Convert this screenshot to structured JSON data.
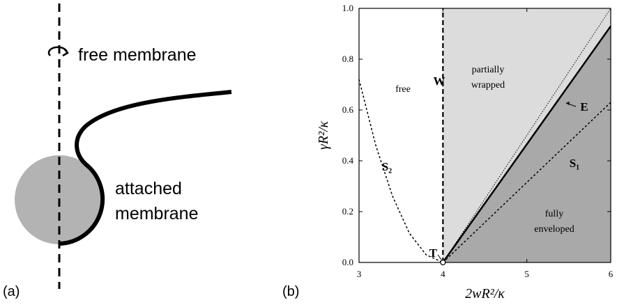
{
  "diagram": {
    "panel_label": "(a)",
    "free_label": "free membrane",
    "attached_label": [
      "attached",
      "membrane"
    ]
  },
  "chart_data": {
    "type": "line",
    "panel_label": "(b)",
    "x_label": "2wR²/κ",
    "y_label": "γR²/κ",
    "xlim": [
      3,
      6
    ],
    "ylim": [
      0,
      1
    ],
    "xticks": [
      3,
      4,
      5,
      6
    ],
    "yticks": [
      {
        "value": 0,
        "label": "0.0"
      },
      0.2,
      0.4,
      0.6,
      0.8,
      {
        "value": 1,
        "label": "1.0"
      }
    ],
    "series": [
      {
        "name": "W",
        "style": "dashed",
        "color": "#000000",
        "x": [
          4,
          4
        ],
        "y": [
          0,
          1
        ]
      },
      {
        "name": "E",
        "style": "solid",
        "color": "#000000",
        "x": [
          4,
          6
        ],
        "y": [
          0,
          0.93
        ]
      },
      {
        "style": "dotted",
        "color": "#000000",
        "x": [
          4,
          6
        ],
        "y": [
          0,
          1.0
        ]
      },
      {
        "name": "S₁",
        "style": "dashed-fine",
        "color": "#000000",
        "x": [
          4,
          6
        ],
        "y": [
          0,
          0.63
        ]
      },
      {
        "name": "S₂",
        "style": "dashed-fine",
        "color": "#000000",
        "x": [
          3,
          3.2,
          3.4,
          3.6,
          3.8,
          4
        ],
        "y": [
          0.72,
          0.46,
          0.26,
          0.115,
          0.03,
          0
        ]
      }
    ],
    "points": [
      {
        "label": "T",
        "x": 4,
        "y": 0
      }
    ],
    "annotations": [
      [
        "free"
      ],
      [
        "partially",
        "wrapped"
      ],
      [
        "fully",
        "enveloped"
      ]
    ]
  }
}
